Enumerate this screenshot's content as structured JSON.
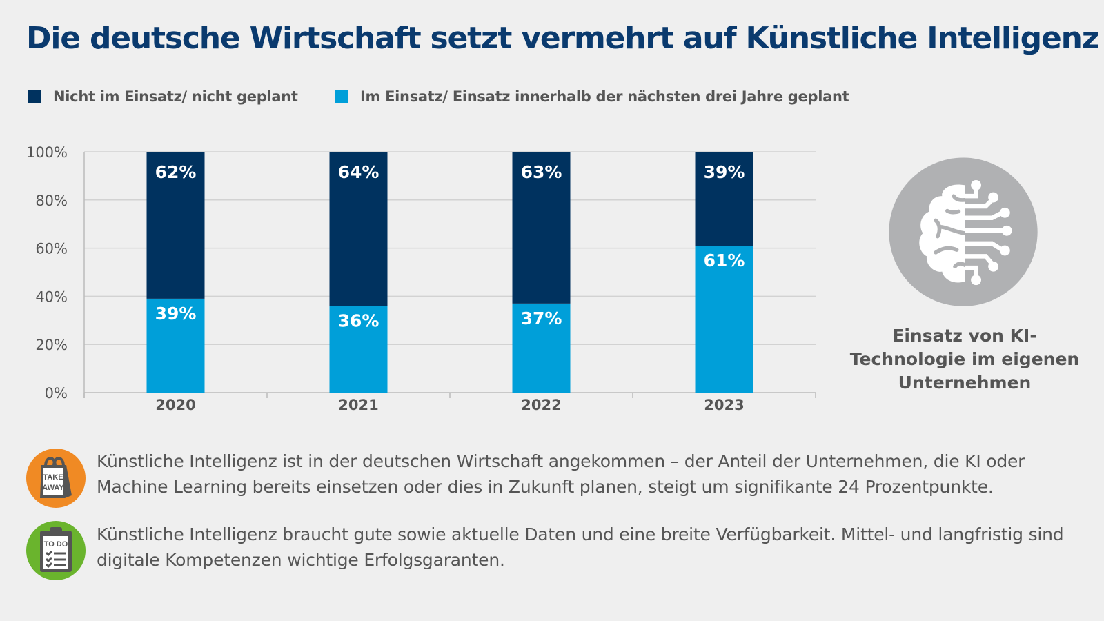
{
  "title": "Die deutsche Wirtschaft setzt vermehrt auf Künstliche Intelligenz",
  "colors": {
    "dark": "#00325f",
    "light": "#009fd9",
    "title": "#0a3a6e",
    "orange": "#f08a24",
    "green": "#6ab42d",
    "icon_gray": "#b0b1b3"
  },
  "legend": [
    {
      "label": "Nicht im Einsatz/ nicht geplant",
      "color": "#00325f"
    },
    {
      "label": "Im Einsatz/ Einsatz innerhalb der nächsten drei Jahre geplant",
      "color": "#009fd9"
    }
  ],
  "chart_data": {
    "type": "bar",
    "stacked": true,
    "categories": [
      "2020",
      "2021",
      "2022",
      "2023"
    ],
    "series": [
      {
        "name": "Im Einsatz/ Einsatz innerhalb der nächsten drei Jahre geplant",
        "values": [
          39,
          36,
          37,
          61
        ],
        "labels": [
          "39%",
          "36%",
          "37%",
          "61%"
        ],
        "color": "#009fd9"
      },
      {
        "name": "Nicht im Einsatz/ nicht geplant",
        "values": [
          62,
          64,
          63,
          39
        ],
        "labels": [
          "62%",
          "64%",
          "63%",
          "39%"
        ],
        "color": "#00325f"
      }
    ],
    "ylim": [
      0,
      100
    ],
    "yticks": [
      "0%",
      "20%",
      "40%",
      "60%",
      "80%",
      "100%"
    ],
    "grid": true,
    "legend_position": "top-left"
  },
  "side": {
    "icon": "brain-circuit-icon",
    "label": "Einsatz von KI-Technologie im eigenen Unternehmen"
  },
  "notes": [
    {
      "icon": "take-away-bag-icon",
      "icon_text": "TAKE AWAY",
      "text": "Künstliche Intelligenz ist in der deutschen Wirtschaft angekommen – der Anteil der Unternehmen, die KI oder Machine Learning bereits einsetzen oder dies in Zukunft planen, steigt um signifikante 24 Prozentpunkte."
    },
    {
      "icon": "to-do-clipboard-icon",
      "icon_text": "TO DO",
      "text": "Künstliche Intelligenz braucht gute sowie aktuelle Daten und eine breite Verfügbarkeit. Mittel- und langfristig sind digitale Kompetenzen wichtige Erfolgsgaranten."
    }
  ]
}
